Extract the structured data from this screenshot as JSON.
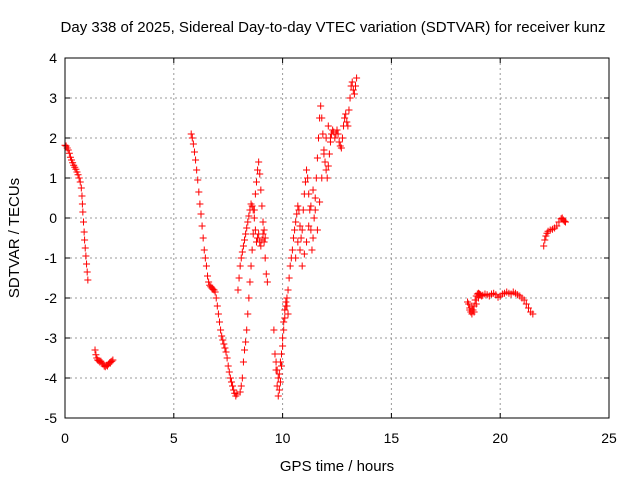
{
  "chart_data": {
    "type": "scatter",
    "title": "Day 338 of 2025, Sidereal Day-to-day VTEC variation (SDTVAR) for receiver kunz",
    "xlabel": "GPS time / hours",
    "ylabel": "SDTVAR / TECUs",
    "xlim": [
      0,
      25
    ],
    "ylim": [
      -5,
      4
    ],
    "xticks": [
      "0",
      "5",
      "10",
      "15",
      "20",
      "25"
    ],
    "yticks": [
      "-5",
      "-4",
      "-3",
      "-2",
      "-1",
      "0",
      "1",
      "2",
      "3",
      "4"
    ],
    "grid": true,
    "marker": "plus",
    "color": "#ff0000",
    "series": [
      {
        "points": [
          [
            0.0,
            1.82
          ],
          [
            0.05,
            1.8
          ],
          [
            0.1,
            1.75
          ],
          [
            0.15,
            1.7
          ],
          [
            0.2,
            1.62
          ],
          [
            0.25,
            1.52
          ],
          [
            0.3,
            1.45
          ],
          [
            0.35,
            1.38
          ],
          [
            0.4,
            1.32
          ],
          [
            0.45,
            1.27
          ],
          [
            0.5,
            1.22
          ],
          [
            0.55,
            1.15
          ],
          [
            0.6,
            1.08
          ],
          [
            0.65,
            1.0
          ],
          [
            0.7,
            0.9
          ],
          [
            0.75,
            0.75
          ],
          [
            0.78,
            0.55
          ],
          [
            0.8,
            0.35
          ],
          [
            0.82,
            0.15
          ],
          [
            0.85,
            -0.1
          ],
          [
            0.88,
            -0.35
          ],
          [
            0.9,
            -0.55
          ],
          [
            0.93,
            -0.75
          ],
          [
            0.96,
            -0.95
          ],
          [
            0.99,
            -1.15
          ],
          [
            1.02,
            -1.35
          ],
          [
            1.05,
            -1.55
          ],
          [
            1.38,
            -3.3
          ],
          [
            1.42,
            -3.42
          ],
          [
            1.46,
            -3.5
          ],
          [
            1.5,
            -3.55
          ],
          [
            1.55,
            -3.57
          ],
          [
            1.6,
            -3.6
          ],
          [
            1.65,
            -3.58
          ],
          [
            1.7,
            -3.62
          ],
          [
            1.75,
            -3.65
          ],
          [
            1.8,
            -3.7
          ],
          [
            1.85,
            -3.72
          ],
          [
            1.9,
            -3.68
          ],
          [
            1.95,
            -3.7
          ],
          [
            2.0,
            -3.65
          ],
          [
            2.05,
            -3.62
          ],
          [
            2.1,
            -3.6
          ],
          [
            2.15,
            -3.58
          ],
          [
            2.2,
            -3.55
          ],
          [
            5.8,
            2.1
          ],
          [
            5.85,
            2.0
          ],
          [
            5.9,
            1.85
          ],
          [
            5.95,
            1.65
          ],
          [
            6.0,
            1.45
          ],
          [
            6.05,
            1.2
          ],
          [
            6.1,
            0.95
          ],
          [
            6.15,
            0.65
          ],
          [
            6.2,
            0.35
          ],
          [
            6.25,
            0.1
          ],
          [
            6.3,
            -0.2
          ],
          [
            6.35,
            -0.5
          ],
          [
            6.4,
            -0.8
          ],
          [
            6.45,
            -1.0
          ],
          [
            6.5,
            -1.2
          ],
          [
            6.55,
            -1.45
          ],
          [
            6.6,
            -1.6
          ],
          [
            6.65,
            -1.68
          ],
          [
            6.7,
            -1.72
          ],
          [
            6.75,
            -1.75
          ],
          [
            6.8,
            -1.78
          ],
          [
            6.85,
            -1.8
          ],
          [
            6.9,
            -1.85
          ],
          [
            6.95,
            -2.0
          ],
          [
            7.0,
            -2.2
          ],
          [
            7.05,
            -2.4
          ],
          [
            7.1,
            -2.6
          ],
          [
            7.15,
            -2.8
          ],
          [
            7.2,
            -2.95
          ],
          [
            7.25,
            -3.05
          ],
          [
            7.3,
            -3.15
          ],
          [
            7.35,
            -3.25
          ],
          [
            7.4,
            -3.35
          ],
          [
            7.45,
            -3.5
          ],
          [
            7.5,
            -3.7
          ],
          [
            7.55,
            -3.85
          ],
          [
            7.6,
            -4.0
          ],
          [
            7.65,
            -4.1
          ],
          [
            7.7,
            -4.2
          ],
          [
            7.75,
            -4.3
          ],
          [
            7.8,
            -4.38
          ],
          [
            7.85,
            -4.45
          ],
          [
            7.9,
            -4.4
          ],
          [
            7.95,
            -1.8
          ],
          [
            8.0,
            -1.5
          ],
          [
            8.05,
            -1.2
          ],
          [
            8.1,
            -1.0
          ],
          [
            8.15,
            -0.85
          ],
          [
            8.2,
            -0.7
          ],
          [
            8.25,
            -0.55
          ],
          [
            8.3,
            -0.4
          ],
          [
            8.35,
            -0.25
          ],
          [
            8.4,
            -0.1
          ],
          [
            8.45,
            0.05
          ],
          [
            8.5,
            0.2
          ],
          [
            8.55,
            0.35
          ],
          [
            8.6,
            0.3
          ],
          [
            8.65,
            0.2
          ],
          [
            8.7,
            0.0
          ],
          [
            8.75,
            -0.3
          ],
          [
            8.8,
            -0.6
          ],
          [
            8.85,
            -0.5
          ],
          [
            8.9,
            -0.4
          ],
          [
            8.95,
            -0.6
          ],
          [
            9.0,
            -0.7
          ],
          [
            9.05,
            -0.55
          ],
          [
            9.1,
            -0.4
          ],
          [
            9.15,
            -0.3
          ],
          [
            9.2,
            -0.5
          ],
          [
            8.05,
            -4.35
          ],
          [
            8.1,
            -4.2
          ],
          [
            8.15,
            -4.0
          ],
          [
            8.2,
            -3.6
          ],
          [
            8.25,
            -3.3
          ],
          [
            8.3,
            -3.1
          ],
          [
            8.35,
            -2.8
          ],
          [
            8.4,
            -2.4
          ],
          [
            8.45,
            -2.0
          ],
          [
            8.5,
            -1.6
          ],
          [
            8.55,
            -1.2
          ],
          [
            8.6,
            -0.8
          ],
          [
            8.65,
            -0.4
          ],
          [
            8.7,
            0.2
          ],
          [
            8.75,
            0.6
          ],
          [
            8.8,
            0.9
          ],
          [
            8.85,
            1.2
          ],
          [
            8.9,
            1.4
          ],
          [
            8.95,
            1.1
          ],
          [
            9.0,
            0.7
          ],
          [
            9.05,
            0.3
          ],
          [
            9.1,
            -0.1
          ],
          [
            9.15,
            -0.6
          ],
          [
            9.2,
            -1.0
          ],
          [
            9.25,
            -1.4
          ],
          [
            9.3,
            -1.6
          ],
          [
            9.6,
            -2.8
          ],
          [
            9.65,
            -3.4
          ],
          [
            9.7,
            -3.8
          ],
          [
            9.75,
            -4.2
          ],
          [
            9.8,
            -4.45
          ],
          [
            9.85,
            -4.3
          ],
          [
            9.9,
            -4.1
          ],
          [
            9.95,
            -3.7
          ],
          [
            10.0,
            -3.2
          ],
          [
            10.05,
            -2.8
          ],
          [
            10.1,
            -2.5
          ],
          [
            10.15,
            -2.2
          ],
          [
            10.2,
            -2.0
          ],
          [
            10.25,
            -1.8
          ],
          [
            10.3,
            -1.5
          ],
          [
            10.35,
            -1.2
          ],
          [
            10.4,
            -1.0
          ],
          [
            10.45,
            -0.8
          ],
          [
            9.7,
            -3.6
          ],
          [
            9.75,
            -3.8
          ],
          [
            9.8,
            -4.0
          ],
          [
            9.85,
            -3.9
          ],
          [
            9.9,
            -3.6
          ],
          [
            9.95,
            -3.4
          ],
          [
            10.0,
            -3.0
          ],
          [
            10.05,
            -2.6
          ],
          [
            10.1,
            -2.3
          ],
          [
            10.15,
            -2.1
          ],
          [
            10.2,
            -2.2
          ],
          [
            10.25,
            -2.4
          ],
          [
            10.5,
            -0.5
          ],
          [
            10.55,
            -0.3
          ],
          [
            10.6,
            -0.1
          ],
          [
            10.65,
            0.1
          ],
          [
            10.7,
            0.3
          ],
          [
            10.75,
            0.2
          ],
          [
            10.8,
            -0.2
          ],
          [
            10.85,
            -0.5
          ],
          [
            10.9,
            -0.3
          ],
          [
            10.95,
            0.2
          ],
          [
            11.0,
            0.6
          ],
          [
            11.05,
            0.9
          ],
          [
            11.1,
            1.2
          ],
          [
            11.15,
            1.0
          ],
          [
            11.2,
            0.6
          ],
          [
            11.25,
            0.2
          ],
          [
            11.3,
            -0.3
          ],
          [
            11.35,
            -0.8
          ],
          [
            11.4,
            -0.5
          ],
          [
            11.45,
            0.0
          ],
          [
            11.5,
            0.5
          ],
          [
            11.55,
            1.0
          ],
          [
            11.6,
            1.5
          ],
          [
            11.65,
            2.0
          ],
          [
            11.7,
            2.5
          ],
          [
            11.75,
            2.8
          ],
          [
            11.8,
            2.5
          ],
          [
            11.85,
            2.1
          ],
          [
            11.9,
            1.7
          ],
          [
            11.95,
            1.4
          ],
          [
            12.0,
            1.2
          ],
          [
            12.05,
            1.0
          ],
          [
            12.1,
            1.3
          ],
          [
            12.15,
            1.6
          ],
          [
            12.2,
            1.9
          ],
          [
            12.25,
            2.1
          ],
          [
            12.3,
            2.2
          ],
          [
            12.35,
            2.15
          ],
          [
            12.4,
            2.0
          ],
          [
            12.45,
            2.1
          ],
          [
            12.5,
            2.2
          ],
          [
            12.55,
            2.1
          ],
          [
            12.6,
            1.9
          ],
          [
            12.65,
            1.8
          ],
          [
            12.7,
            1.75
          ],
          [
            12.75,
            2.0
          ],
          [
            12.8,
            2.3
          ],
          [
            12.85,
            2.5
          ],
          [
            12.9,
            2.6
          ],
          [
            12.95,
            2.4
          ],
          [
            13.0,
            2.3
          ],
          [
            13.05,
            2.7
          ],
          [
            13.1,
            3.0
          ],
          [
            13.15,
            3.3
          ],
          [
            13.2,
            3.4
          ],
          [
            13.25,
            3.2
          ],
          [
            13.3,
            3.1
          ],
          [
            13.35,
            3.3
          ],
          [
            13.4,
            3.5
          ],
          [
            10.6,
            -1.0
          ],
          [
            10.7,
            -0.6
          ],
          [
            10.8,
            -0.8
          ],
          [
            10.9,
            -1.2
          ],
          [
            11.0,
            -0.9
          ],
          [
            11.1,
            -0.6
          ],
          [
            11.2,
            -0.2
          ],
          [
            11.3,
            0.3
          ],
          [
            11.4,
            0.7
          ],
          [
            11.5,
            0.2
          ],
          [
            11.6,
            -0.3
          ],
          [
            11.7,
            0.4
          ],
          [
            11.8,
            1.0
          ],
          [
            11.9,
            1.6
          ],
          [
            12.0,
            2.0
          ],
          [
            12.1,
            2.3
          ],
          [
            12.2,
            2.0
          ],
          [
            18.5,
            -2.1
          ],
          [
            18.55,
            -2.15
          ],
          [
            18.6,
            -2.25
          ],
          [
            18.65,
            -2.35
          ],
          [
            18.7,
            -2.4
          ],
          [
            18.75,
            -2.3
          ],
          [
            18.8,
            -2.2
          ],
          [
            18.85,
            -2.05
          ],
          [
            18.9,
            -1.95
          ],
          [
            18.95,
            -1.9
          ],
          [
            19.0,
            -1.88
          ],
          [
            19.05,
            -1.9
          ],
          [
            19.1,
            -1.92
          ],
          [
            19.15,
            -1.95
          ],
          [
            19.2,
            -1.93
          ],
          [
            19.3,
            -1.9
          ],
          [
            19.4,
            -1.92
          ],
          [
            19.5,
            -1.95
          ],
          [
            19.6,
            -1.9
          ],
          [
            19.7,
            -1.88
          ],
          [
            19.8,
            -1.92
          ],
          [
            19.9,
            -1.98
          ],
          [
            20.0,
            -1.95
          ],
          [
            20.1,
            -1.9
          ],
          [
            20.2,
            -1.88
          ],
          [
            20.3,
            -1.85
          ],
          [
            20.4,
            -1.88
          ],
          [
            20.5,
            -1.9
          ],
          [
            20.6,
            -1.85
          ],
          [
            20.7,
            -1.88
          ],
          [
            20.8,
            -1.92
          ],
          [
            20.9,
            -1.95
          ],
          [
            21.0,
            -2.0
          ],
          [
            21.1,
            -2.05
          ],
          [
            21.2,
            -2.15
          ],
          [
            21.3,
            -2.25
          ],
          [
            21.4,
            -2.35
          ],
          [
            21.5,
            -2.4
          ],
          [
            18.6,
            -2.3
          ],
          [
            18.7,
            -2.2
          ],
          [
            18.8,
            -2.35
          ],
          [
            18.9,
            -2.15
          ],
          [
            19.0,
            -2.0
          ],
          [
            22.0,
            -0.7
          ],
          [
            22.05,
            -0.55
          ],
          [
            22.1,
            -0.45
          ],
          [
            22.15,
            -0.38
          ],
          [
            22.2,
            -0.33
          ],
          [
            22.3,
            -0.3
          ],
          [
            22.4,
            -0.28
          ],
          [
            22.5,
            -0.25
          ],
          [
            22.6,
            -0.2
          ],
          [
            22.7,
            -0.1
          ],
          [
            22.8,
            -0.02
          ],
          [
            22.85,
            0.0
          ],
          [
            22.9,
            -0.05
          ],
          [
            22.95,
            -0.08
          ],
          [
            23.0,
            -0.1
          ]
        ]
      }
    ]
  }
}
